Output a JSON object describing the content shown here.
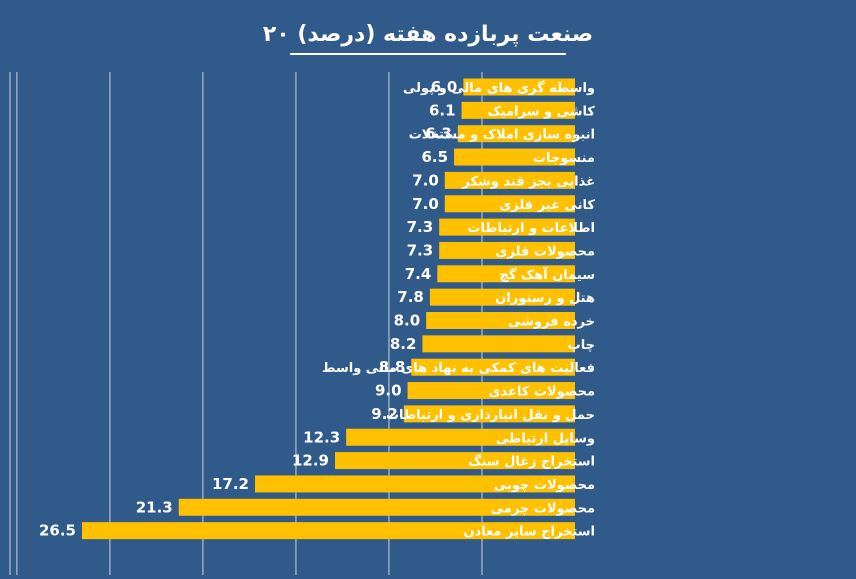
{
  "chart_data": {
    "type": "bar",
    "orientation": "horizontal",
    "title": "۲۰ صنعت پربازده هفته (درصد)",
    "categories": [
      "واسطه گری های مالی و پولی",
      "کاشی و سرامیک",
      "انبوه سازی املاک و مستغلات",
      "منسوجات",
      "غذایی بجز قند وشکر",
      "کانی غیر فلزی",
      "اطلاعات و ارتباطات",
      "محصولات فلزی",
      "سیمان آهک گچ",
      "هتل و رستوران",
      "خرده فروشی",
      "چاپ",
      "فعالیت های کمکی به نهاد های مالی واسط",
      "محصولات کاغذی",
      "حمل و نقل انبارداری و ارتباطات",
      "وسایل ارتباطی",
      "استخراج زغال سنگ",
      "محصولات چوبی",
      "محصولات چرمی",
      "استخراج سایر معادن"
    ],
    "values": [
      6.0,
      6.1,
      6.3,
      6.5,
      7.0,
      7.0,
      7.3,
      7.3,
      7.4,
      7.8,
      8.0,
      8.2,
      8.8,
      9.0,
      9.2,
      12.3,
      12.9,
      17.2,
      21.3,
      26.5
    ],
    "value_labels": [
      "6.0",
      "6.1",
      "6.3",
      "6.5",
      "7.0",
      "7.0",
      "7.3",
      "7.3",
      "7.4",
      "7.8",
      "8.0",
      "8.2",
      "8.8",
      "9.0",
      "9.2",
      "12.3",
      "12.9",
      "17.2",
      "21.3",
      "26.5"
    ],
    "xlim": [
      0,
      30
    ],
    "grid": true,
    "legend": "none",
    "colors": {
      "background": "#2f5a8a",
      "bar": "#ffc000",
      "grid": "#c8d3e0",
      "text": "#ffffff"
    }
  }
}
